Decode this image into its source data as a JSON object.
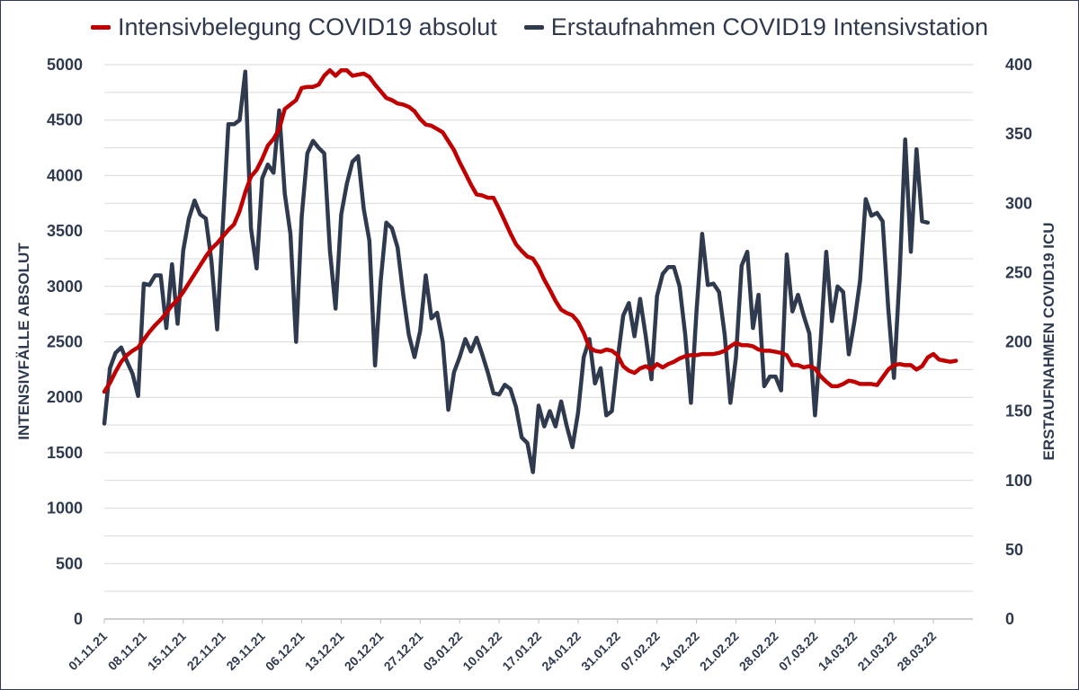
{
  "chart_data": {
    "type": "line",
    "legend_position": "top",
    "grid": true,
    "x_tick_labels": [
      "01.11.21",
      "08.11.21",
      "15.11.21",
      "22.11.21",
      "29.11.21",
      "06.12.21",
      "13.12.21",
      "20.12.21",
      "27.12.21",
      "03.01.22",
      "10.01.22",
      "17.01.22",
      "24.01.22",
      "31.01.22",
      "07.02.22",
      "14.02.22",
      "21.02.22",
      "28.02.22",
      "07.03.22",
      "14.03.22",
      "21.03.22",
      "28.03.22"
    ],
    "ylabel_left": "INTENSIVFÄLLE ABSOLUT",
    "ylabel_right": "ERSTAUFNAHMEN COVID19 ICU",
    "ylim_left": [
      0,
      5000
    ],
    "ylim_right": [
      0,
      400
    ],
    "yticks_left": [
      0,
      500,
      1000,
      1500,
      2000,
      2500,
      3000,
      3500,
      4000,
      4500,
      5000
    ],
    "yticks_right": [
      0,
      50,
      100,
      150,
      200,
      250,
      300,
      350,
      400
    ],
    "series": [
      {
        "name": "Intensivbelegung COVID19 absolut",
        "axis": "left",
        "color": "#c00000",
        "x_start": "01.11.21",
        "values": [
          2050,
          2130,
          2230,
          2320,
          2380,
          2420,
          2450,
          2520,
          2590,
          2650,
          2700,
          2760,
          2830,
          2880,
          2950,
          3030,
          3110,
          3190,
          3270,
          3340,
          3390,
          3450,
          3510,
          3560,
          3680,
          3850,
          3990,
          4050,
          4150,
          4270,
          4330,
          4420,
          4600,
          4640,
          4680,
          4790,
          4800,
          4800,
          4820,
          4900,
          4950,
          4900,
          4950,
          4950,
          4900,
          4910,
          4920,
          4890,
          4820,
          4760,
          4700,
          4680,
          4650,
          4640,
          4620,
          4580,
          4510,
          4460,
          4450,
          4420,
          4390,
          4310,
          4230,
          4120,
          4020,
          3920,
          3830,
          3820,
          3800,
          3800,
          3700,
          3590,
          3480,
          3380,
          3320,
          3270,
          3250,
          3170,
          3060,
          2970,
          2870,
          2790,
          2760,
          2740,
          2680,
          2580,
          2450,
          2420,
          2410,
          2430,
          2420,
          2380,
          2280,
          2240,
          2220,
          2260,
          2280,
          2250,
          2300,
          2270,
          2300,
          2320,
          2350,
          2370,
          2380,
          2380,
          2390,
          2390,
          2390,
          2400,
          2420,
          2460,
          2490,
          2470,
          2470,
          2460,
          2430,
          2420,
          2420,
          2410,
          2400,
          2380,
          2290,
          2290,
          2270,
          2280,
          2260,
          2190,
          2140,
          2100,
          2100,
          2120,
          2150,
          2140,
          2120,
          2120,
          2120,
          2110,
          2180,
          2250,
          2290,
          2300,
          2290,
          2290,
          2250,
          2280,
          2360,
          2390,
          2340,
          2330,
          2320,
          2330
        ]
      },
      {
        "name": "Erstaufnahmen COVID19 Intensivstation",
        "axis": "right",
        "color": "#2f3a4f",
        "x_start": "01.11.21",
        "values": [
          141,
          181,
          192,
          196,
          186,
          177,
          161,
          242,
          241,
          248,
          248,
          210,
          256,
          213,
          266,
          289,
          302,
          292,
          289,
          258,
          209,
          283,
          357,
          357,
          360,
          395,
          282,
          253,
          318,
          328,
          322,
          367,
          307,
          278,
          200,
          290,
          336,
          345,
          340,
          336,
          266,
          224,
          292,
          314,
          330,
          334,
          296,
          273,
          183,
          244,
          286,
          282,
          268,
          234,
          205,
          189,
          208,
          248,
          217,
          221,
          200,
          151,
          178,
          189,
          202,
          193,
          203,
          191,
          178,
          163,
          162,
          169,
          166,
          153,
          131,
          127,
          106,
          154,
          139,
          150,
          139,
          157,
          139,
          124,
          149,
          189,
          202,
          170,
          181,
          147,
          150,
          187,
          219,
          228,
          204,
          231,
          204,
          173,
          233,
          249,
          254,
          254,
          240,
          205,
          156,
          222,
          278,
          241,
          242,
          236,
          205,
          156,
          189,
          255,
          265,
          210,
          234,
          168,
          175,
          175,
          165,
          263,
          222,
          234,
          219,
          206,
          147,
          200,
          265,
          215,
          240,
          236,
          191,
          215,
          244,
          303,
          291,
          293,
          287,
          224,
          174,
          248,
          346,
          265,
          339,
          287,
          286
        ]
      }
    ]
  }
}
